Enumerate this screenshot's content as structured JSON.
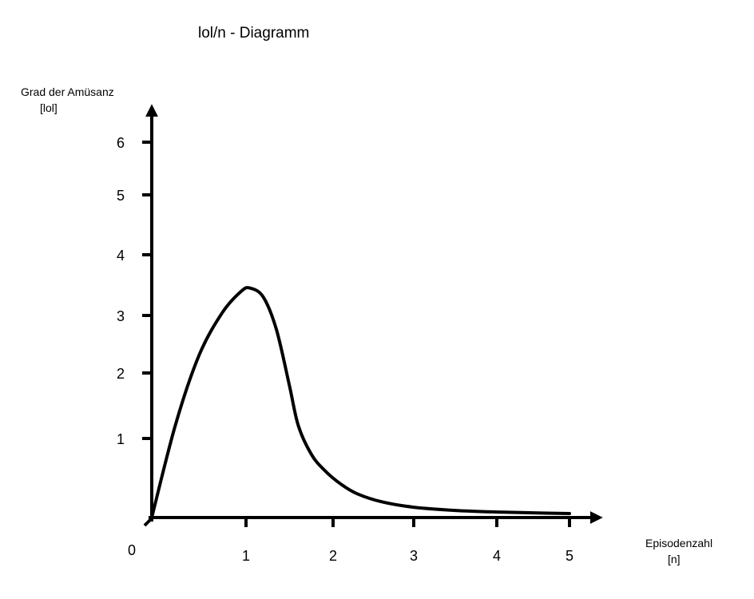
{
  "chart_data": {
    "type": "line",
    "title": "lol/n - Diagramm",
    "ylabel": "Grad der Amüsanz",
    "ylabel_unit": "[lol]",
    "xlabel": "Episodenzahl",
    "xlabel_unit": "[n]",
    "origin_label": "0",
    "x_ticks": [
      1,
      2,
      3,
      4,
      5
    ],
    "y_ticks": [
      1,
      2,
      3,
      4,
      5,
      6
    ],
    "xlim": [
      0,
      5
    ],
    "ylim": [
      0,
      6
    ],
    "grid": false,
    "legend": false,
    "line_color": "#000000",
    "series": [
      {
        "x": [
          0,
          0.25,
          0.5,
          0.75,
          0.95,
          1.05,
          1.2,
          1.35,
          1.5,
          1.6,
          1.75,
          1.9,
          2.1,
          2.3,
          2.6,
          3.0,
          3.5,
          4.0,
          4.5,
          5.0
        ],
        "y": [
          0,
          1.2,
          2.3,
          3.05,
          3.4,
          3.45,
          3.3,
          2.75,
          1.8,
          1.2,
          0.8,
          0.6,
          0.42,
          0.3,
          0.2,
          0.13,
          0.09,
          0.07,
          0.06,
          0.05
        ]
      }
    ]
  }
}
